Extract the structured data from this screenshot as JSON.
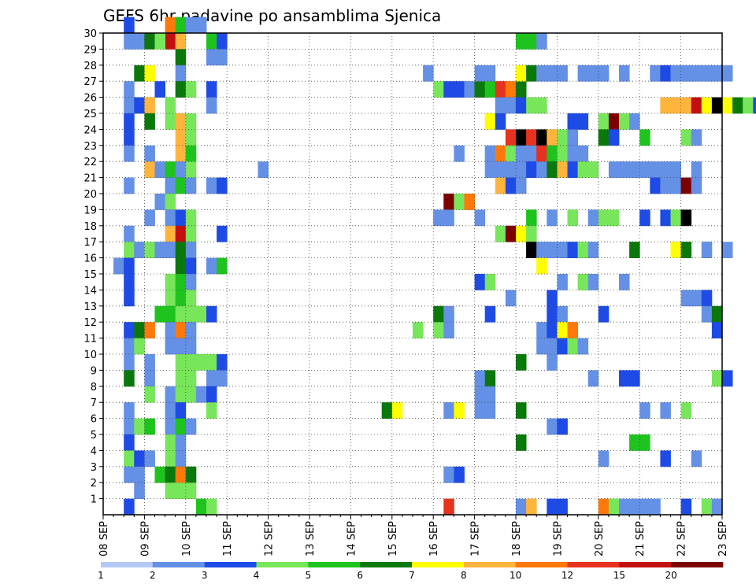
{
  "chart_data": {
    "type": "heatmap",
    "title": "GEFS 6hr padavine po ansamblima Sjenica",
    "x_labels": [
      "08 SEP",
      "09 SEP",
      "10 SEP",
      "11 SEP",
      "12 SEP",
      "13 SEP",
      "14 SEP",
      "15 SEP",
      "16 SEP",
      "17 SEP",
      "18 SEP",
      "19 SEP",
      "20 SEP",
      "21 SEP",
      "22 SEP",
      "23 SEP"
    ],
    "y_labels": [
      "1",
      "2",
      "3",
      "4",
      "5",
      "6",
      "7",
      "8",
      "9",
      "10",
      "11",
      "12",
      "13",
      "14",
      "15",
      "16",
      "17",
      "18",
      "19",
      "20",
      "21",
      "22",
      "23",
      "24",
      "25",
      "26",
      "27",
      "28",
      "29",
      "30"
    ],
    "ylim": [
      0,
      30
    ],
    "x_step_hours": 6,
    "grid": true,
    "levels": [
      "1",
      "2",
      "3",
      "4",
      "5",
      "6",
      "7",
      "8",
      "10",
      "12",
      "15",
      "20"
    ],
    "colors": [
      "#b4c8f5",
      "#6490e6",
      "#1e4be6",
      "#78e65a",
      "#1ec31e",
      "#0a780a",
      "#ffff00",
      "#ffb43c",
      "#ff780a",
      "#e6321e",
      "#c30f0f",
      "#7d0000"
    ],
    "cells": [
      [
        2,
        30,
        2
      ],
      [
        6,
        30,
        8
      ],
      [
        6,
        29,
        10
      ],
      [
        7,
        30,
        4
      ],
      [
        7,
        29,
        7
      ],
      [
        8,
        30,
        1
      ],
      [
        9,
        30,
        1
      ],
      [
        2,
        29,
        1
      ],
      [
        3,
        29,
        1
      ],
      [
        4,
        29,
        5
      ],
      [
        5,
        29,
        3
      ],
      [
        7,
        28,
        5
      ],
      [
        10,
        29,
        4
      ],
      [
        11,
        29,
        2
      ],
      [
        10,
        28,
        1
      ],
      [
        11,
        28,
        1
      ],
      [
        3,
        27,
        5
      ],
      [
        4,
        27,
        6
      ],
      [
        7,
        27,
        1
      ],
      [
        2,
        26,
        1
      ],
      [
        5,
        26,
        2
      ],
      [
        7,
        26,
        5
      ],
      [
        8,
        26,
        3
      ],
      [
        10,
        26,
        2
      ],
      [
        2,
        25,
        1
      ],
      [
        3,
        25,
        2
      ],
      [
        4,
        25,
        7
      ],
      [
        6,
        25,
        3
      ],
      [
        10,
        25,
        1
      ],
      [
        2,
        24,
        2
      ],
      [
        4,
        24,
        5
      ],
      [
        6,
        24,
        3
      ],
      [
        7,
        24,
        7
      ],
      [
        8,
        24,
        3
      ],
      [
        2,
        23,
        2
      ],
      [
        7,
        23,
        7
      ],
      [
        8,
        23,
        3
      ],
      [
        2,
        22,
        1
      ],
      [
        4,
        22,
        1
      ],
      [
        7,
        22,
        7
      ],
      [
        8,
        22,
        4
      ],
      [
        4,
        21,
        7
      ],
      [
        5,
        21,
        1
      ],
      [
        6,
        21,
        4
      ],
      [
        7,
        21,
        1
      ],
      [
        8,
        21,
        3
      ],
      [
        15,
        21,
        1
      ],
      [
        2,
        20,
        1
      ],
      [
        6,
        20,
        1
      ],
      [
        7,
        20,
        4
      ],
      [
        8,
        20,
        1
      ],
      [
        10,
        20,
        1
      ],
      [
        11,
        20,
        2
      ],
      [
        5,
        19,
        1
      ],
      [
        6,
        19,
        3
      ],
      [
        4,
        18,
        1
      ],
      [
        6,
        18,
        1
      ],
      [
        7,
        18,
        2
      ],
      [
        8,
        18,
        3
      ],
      [
        2,
        17,
        1
      ],
      [
        6,
        17,
        7
      ],
      [
        7,
        17,
        10
      ],
      [
        8,
        17,
        3
      ],
      [
        11,
        17,
        2
      ],
      [
        2,
        16,
        3
      ],
      [
        3,
        16,
        1
      ],
      [
        4,
        16,
        3
      ],
      [
        5,
        16,
        1
      ],
      [
        6,
        16,
        1
      ],
      [
        7,
        16,
        5
      ],
      [
        8,
        16,
        1
      ],
      [
        1,
        15,
        1
      ],
      [
        2,
        15,
        2
      ],
      [
        7,
        15,
        5
      ],
      [
        8,
        15,
        2
      ],
      [
        10,
        15,
        1
      ],
      [
        11,
        15,
        4
      ],
      [
        2,
        14,
        2
      ],
      [
        6,
        14,
        3
      ],
      [
        7,
        14,
        4
      ],
      [
        8,
        14,
        1
      ],
      [
        2,
        13,
        2
      ],
      [
        6,
        13,
        3
      ],
      [
        7,
        13,
        4
      ],
      [
        8,
        13,
        3
      ],
      [
        5,
        12,
        4
      ],
      [
        6,
        12,
        4
      ],
      [
        7,
        12,
        3
      ],
      [
        8,
        12,
        3
      ],
      [
        9,
        12,
        3
      ],
      [
        10,
        12,
        2
      ],
      [
        2,
        11,
        2
      ],
      [
        3,
        11,
        5
      ],
      [
        4,
        11,
        8
      ],
      [
        6,
        11,
        1
      ],
      [
        7,
        11,
        8
      ],
      [
        8,
        11,
        1
      ],
      [
        2,
        10,
        1
      ],
      [
        3,
        10,
        3
      ],
      [
        6,
        10,
        1
      ],
      [
        7,
        10,
        1
      ],
      [
        8,
        10,
        1
      ],
      [
        2,
        9,
        1
      ],
      [
        4,
        9,
        1
      ],
      [
        7,
        9,
        3
      ],
      [
        8,
        9,
        3
      ],
      [
        9,
        9,
        3
      ],
      [
        10,
        9,
        3
      ],
      [
        11,
        9,
        2
      ],
      [
        2,
        8,
        5
      ],
      [
        4,
        8,
        1
      ],
      [
        7,
        8,
        3
      ],
      [
        8,
        8,
        3
      ],
      [
        10,
        8,
        1
      ],
      [
        11,
        8,
        1
      ],
      [
        4,
        7,
        3
      ],
      [
        6,
        7,
        1
      ],
      [
        7,
        7,
        3
      ],
      [
        8,
        7,
        3
      ],
      [
        9,
        7,
        1
      ],
      [
        10,
        7,
        2
      ],
      [
        2,
        6,
        1
      ],
      [
        6,
        6,
        1
      ],
      [
        7,
        6,
        2
      ],
      [
        10,
        6,
        3
      ],
      [
        2,
        5,
        1
      ],
      [
        3,
        5,
        3
      ],
      [
        4,
        5,
        4
      ],
      [
        6,
        5,
        1
      ],
      [
        7,
        5,
        4
      ],
      [
        8,
        5,
        1
      ],
      [
        2,
        4,
        2
      ],
      [
        6,
        4,
        3
      ],
      [
        7,
        4,
        1
      ],
      [
        2,
        3,
        3
      ],
      [
        3,
        3,
        2
      ],
      [
        4,
        3,
        1
      ],
      [
        6,
        3,
        3
      ],
      [
        7,
        3,
        1
      ],
      [
        2,
        2,
        1
      ],
      [
        3,
        2,
        1
      ],
      [
        5,
        2,
        4
      ],
      [
        6,
        2,
        5
      ],
      [
        7,
        2,
        8
      ],
      [
        8,
        2,
        5
      ],
      [
        3,
        1,
        1
      ],
      [
        6,
        1,
        3
      ],
      [
        7,
        1,
        3
      ],
      [
        8,
        1,
        3
      ],
      [
        2,
        0,
        2
      ],
      [
        9,
        0,
        4
      ],
      [
        10,
        0,
        3
      ],
      [
        32,
        26,
        3
      ],
      [
        33,
        26,
        2
      ],
      [
        34,
        26,
        2
      ],
      [
        35,
        26,
        1
      ],
      [
        36,
        26,
        5
      ],
      [
        37,
        26,
        4
      ],
      [
        38,
        26,
        9
      ],
      [
        39,
        26,
        8
      ],
      [
        40,
        26,
        5
      ],
      [
        31,
        27,
        1
      ],
      [
        36,
        27,
        1
      ],
      [
        37,
        27,
        1
      ],
      [
        40,
        27,
        6
      ],
      [
        41,
        27,
        5
      ],
      [
        42,
        27,
        1
      ],
      [
        43,
        27,
        1
      ],
      [
        44,
        27,
        1
      ],
      [
        46,
        27,
        1
      ],
      [
        47,
        27,
        1
      ],
      [
        48,
        27,
        1
      ],
      [
        50,
        27,
        1
      ],
      [
        53,
        27,
        1
      ],
      [
        54,
        27,
        2
      ],
      [
        55,
        27,
        1
      ],
      [
        56,
        27,
        1
      ],
      [
        57,
        27,
        1
      ],
      [
        58,
        27,
        1
      ],
      [
        59,
        27,
        1
      ],
      [
        60,
        27,
        1
      ],
      [
        40,
        29,
        4
      ],
      [
        41,
        29,
        4
      ],
      [
        42,
        29,
        1
      ],
      [
        38,
        25,
        1
      ],
      [
        39,
        25,
        1
      ],
      [
        40,
        25,
        2
      ],
      [
        41,
        25,
        3
      ],
      [
        42,
        25,
        3
      ],
      [
        54,
        25,
        7
      ],
      [
        55,
        25,
        7
      ],
      [
        56,
        25,
        7
      ],
      [
        57,
        25,
        10
      ],
      [
        58,
        25,
        6
      ],
      [
        59,
        25,
        12
      ],
      [
        60,
        25,
        6
      ],
      [
        61,
        25,
        5
      ],
      [
        62,
        25,
        3
      ],
      [
        63,
        25,
        2
      ],
      [
        37,
        24,
        6
      ],
      [
        38,
        24,
        2
      ],
      [
        45,
        24,
        2
      ],
      [
        46,
        24,
        2
      ],
      [
        48,
        24,
        3
      ],
      [
        49,
        24,
        11
      ],
      [
        50,
        24,
        3
      ],
      [
        51,
        24,
        1
      ],
      [
        39,
        23,
        9
      ],
      [
        40,
        23,
        12
      ],
      [
        41,
        23,
        9
      ],
      [
        42,
        23,
        12
      ],
      [
        43,
        23,
        7
      ],
      [
        44,
        23,
        3
      ],
      [
        45,
        23,
        1
      ],
      [
        48,
        23,
        5
      ],
      [
        49,
        23,
        2
      ],
      [
        52,
        23,
        4
      ],
      [
        56,
        23,
        3
      ],
      [
        57,
        23,
        1
      ],
      [
        34,
        22,
        1
      ],
      [
        37,
        22,
        1
      ],
      [
        38,
        22,
        8
      ],
      [
        39,
        22,
        3
      ],
      [
        40,
        22,
        1
      ],
      [
        41,
        22,
        1
      ],
      [
        42,
        22,
        9
      ],
      [
        43,
        22,
        4
      ],
      [
        44,
        22,
        3
      ],
      [
        45,
        22,
        1
      ],
      [
        46,
        22,
        1
      ],
      [
        37,
        21,
        1
      ],
      [
        38,
        21,
        1
      ],
      [
        39,
        21,
        1
      ],
      [
        40,
        21,
        1
      ],
      [
        41,
        21,
        2
      ],
      [
        42,
        21,
        1
      ],
      [
        43,
        21,
        5
      ],
      [
        44,
        21,
        7
      ],
      [
        45,
        21,
        2
      ],
      [
        46,
        21,
        3
      ],
      [
        47,
        21,
        3
      ],
      [
        49,
        21,
        1
      ],
      [
        50,
        21,
        1
      ],
      [
        51,
        21,
        1
      ],
      [
        52,
        21,
        1
      ],
      [
        53,
        21,
        1
      ],
      [
        54,
        21,
        1
      ],
      [
        55,
        21,
        1
      ],
      [
        57,
        21,
        1
      ],
      [
        38,
        20,
        7
      ],
      [
        39,
        20,
        2
      ],
      [
        40,
        20,
        1
      ],
      [
        53,
        20,
        2
      ],
      [
        54,
        20,
        1
      ],
      [
        55,
        20,
        1
      ],
      [
        56,
        20,
        11
      ],
      [
        57,
        20,
        1
      ],
      [
        33,
        19,
        11
      ],
      [
        34,
        19,
        3
      ],
      [
        35,
        19,
        8
      ],
      [
        32,
        18,
        1
      ],
      [
        33,
        18,
        1
      ],
      [
        36,
        18,
        1
      ],
      [
        41,
        18,
        4
      ],
      [
        43,
        18,
        1
      ],
      [
        45,
        18,
        3
      ],
      [
        47,
        18,
        1
      ],
      [
        48,
        18,
        3
      ],
      [
        49,
        18,
        3
      ],
      [
        52,
        18,
        2
      ],
      [
        54,
        18,
        2
      ],
      [
        55,
        18,
        3
      ],
      [
        56,
        18,
        12
      ],
      [
        38,
        17,
        3
      ],
      [
        39,
        17,
        11
      ],
      [
        40,
        17,
        6
      ],
      [
        41,
        17,
        3
      ],
      [
        41,
        16,
        12
      ],
      [
        42,
        16,
        1
      ],
      [
        43,
        16,
        1
      ],
      [
        44,
        16,
        1
      ],
      [
        45,
        16,
        2
      ],
      [
        46,
        16,
        3
      ],
      [
        47,
        16,
        1
      ],
      [
        51,
        16,
        5
      ],
      [
        55,
        16,
        6
      ],
      [
        56,
        16,
        5
      ],
      [
        58,
        16,
        1
      ],
      [
        60,
        16,
        1
      ],
      [
        42,
        15,
        6
      ],
      [
        36,
        14,
        2
      ],
      [
        37,
        14,
        3
      ],
      [
        44,
        14,
        1
      ],
      [
        46,
        14,
        3
      ],
      [
        47,
        14,
        1
      ],
      [
        50,
        14,
        1
      ],
      [
        39,
        13,
        1
      ],
      [
        43,
        13,
        2
      ],
      [
        56,
        13,
        1
      ],
      [
        57,
        13,
        1
      ],
      [
        58,
        13,
        2
      ],
      [
        32,
        12,
        5
      ],
      [
        33,
        12,
        1
      ],
      [
        37,
        12,
        2
      ],
      [
        43,
        12,
        2
      ],
      [
        44,
        12,
        1
      ],
      [
        48,
        12,
        2
      ],
      [
        58,
        12,
        1
      ],
      [
        59,
        12,
        5
      ],
      [
        30,
        11,
        3
      ],
      [
        32,
        11,
        3
      ],
      [
        33,
        11,
        1
      ],
      [
        42,
        11,
        1
      ],
      [
        43,
        11,
        2
      ],
      [
        44,
        11,
        6
      ],
      [
        45,
        11,
        8
      ],
      [
        59,
        11,
        2
      ],
      [
        42,
        10,
        1
      ],
      [
        43,
        10,
        1
      ],
      [
        44,
        10,
        2
      ],
      [
        45,
        10,
        3
      ],
      [
        46,
        10,
        1
      ],
      [
        40,
        9,
        5
      ],
      [
        43,
        9,
        1
      ],
      [
        36,
        8,
        1
      ],
      [
        37,
        8,
        5
      ],
      [
        47,
        8,
        1
      ],
      [
        50,
        8,
        2
      ],
      [
        51,
        8,
        2
      ],
      [
        59,
        8,
        3
      ],
      [
        60,
        8,
        2
      ],
      [
        36,
        7,
        1
      ],
      [
        37,
        7,
        1
      ],
      [
        27,
        6,
        5
      ],
      [
        28,
        6,
        6
      ],
      [
        33,
        6,
        1
      ],
      [
        34,
        6,
        6
      ],
      [
        36,
        6,
        1
      ],
      [
        37,
        6,
        1
      ],
      [
        40,
        6,
        5
      ],
      [
        52,
        6,
        1
      ],
      [
        54,
        6,
        1
      ],
      [
        56,
        6,
        3
      ],
      [
        43,
        5,
        1
      ],
      [
        44,
        5,
        2
      ],
      [
        40,
        4,
        5
      ],
      [
        51,
        4,
        4
      ],
      [
        52,
        4,
        4
      ],
      [
        48,
        3,
        1
      ],
      [
        54,
        3,
        2
      ],
      [
        57,
        3,
        1
      ],
      [
        33,
        2,
        1
      ],
      [
        34,
        2,
        2
      ],
      [
        33,
        0,
        9
      ],
      [
        40,
        0,
        1
      ],
      [
        41,
        0,
        7
      ],
      [
        43,
        0,
        2
      ],
      [
        44,
        0,
        2
      ],
      [
        48,
        0,
        8
      ],
      [
        49,
        0,
        3
      ],
      [
        50,
        0,
        1
      ],
      [
        51,
        0,
        1
      ],
      [
        52,
        0,
        1
      ],
      [
        53,
        0,
        1
      ],
      [
        56,
        0,
        2
      ],
      [
        58,
        0,
        3
      ],
      [
        59,
        0,
        1
      ]
    ]
  }
}
